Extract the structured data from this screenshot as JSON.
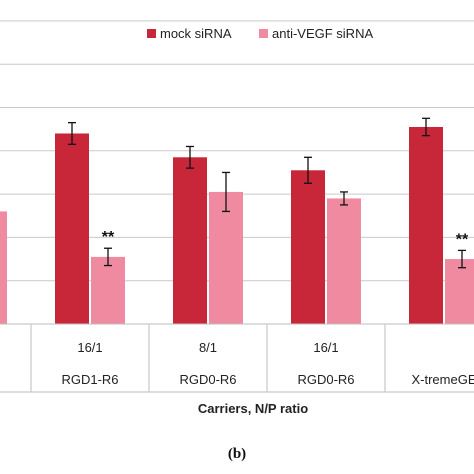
{
  "chart_data": {
    "type": "bar",
    "xlabel": "Carriers, N/P ratio",
    "ylabel": "",
    "grid": true,
    "legend_position": "top-right",
    "panel_label": "(b)",
    "groups": [
      {
        "ratio": "",
        "carrier": ""
      },
      {
        "ratio": "16/1",
        "carrier": "RGD1-R6"
      },
      {
        "ratio": "8/1",
        "carrier": "RGD0-R6"
      },
      {
        "ratio": "16/1",
        "carrier": "RGD0-R6"
      },
      {
        "ratio": "",
        "carrier": "X-tremeGE"
      }
    ],
    "series": [
      {
        "name": "mock siRNA",
        "color": "#c8273a",
        "values": [
          null,
          88,
          77,
          71,
          91
        ],
        "errors": [
          null,
          5,
          5,
          6,
          4
        ]
      },
      {
        "name": "anti-VEGF siRNA",
        "color": "#f08aa0",
        "values": [
          52,
          31,
          61,
          58,
          30
        ],
        "errors": [
          null,
          4,
          9,
          3,
          4
        ]
      }
    ],
    "significance": [
      {
        "group": 1,
        "series": 1,
        "text": "**"
      },
      {
        "group": 4,
        "series": 1,
        "text": "**"
      }
    ]
  }
}
